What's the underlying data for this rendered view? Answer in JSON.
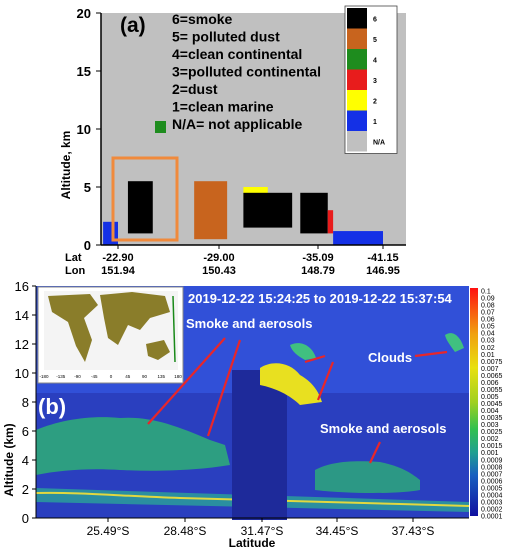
{
  "panel_a": {
    "label": "(a)",
    "ylabel": "Altitude, km",
    "yticks": [
      0,
      5,
      10,
      15,
      20
    ],
    "ylim": [
      0,
      20
    ],
    "row_labels": [
      "Lat",
      "Lon"
    ],
    "xticks": [
      {
        "lat": "-22.90",
        "lon": "151.94"
      },
      {
        "lat": "-29.00",
        "lon": "150.43"
      },
      {
        "lat": "-35.09",
        "lon": "148.79"
      },
      {
        "lat": "-41.15",
        "lon": "146.95"
      }
    ],
    "legend_text": [
      "6=smoke",
      "5=  polluted dust",
      "4=clean continental",
      "3=polluted continental",
      "2=dust",
      "1=clean marine",
      "N/A= not applicable"
    ],
    "colorbar": [
      {
        "label": "6",
        "color": "#000000"
      },
      {
        "label": "5",
        "color": "#c8641e"
      },
      {
        "label": "4",
        "color": "#1e8c1e"
      },
      {
        "label": "3",
        "color": "#e81c1c"
      },
      {
        "label": "2",
        "color": "#ffff00"
      },
      {
        "label": "1",
        "color": "#1430e6"
      },
      {
        "label": "N/A",
        "color": "#c0c0c0"
      }
    ],
    "colors": {
      "background": "#c0c0c0",
      "highlight_box": "#f08a3c"
    }
  },
  "panel_b": {
    "label": "(b)",
    "ylabel": "Altitude (km)",
    "xlabel": "Latitude",
    "yticks": [
      0,
      2,
      4,
      6,
      8,
      10,
      12,
      14,
      16
    ],
    "ylim": [
      0,
      16
    ],
    "xticks": [
      "25.49°S",
      "28.48°S",
      "31.47°S",
      "34.45°S",
      "37.43°S"
    ],
    "time_range": "2019-12-22 15:24:25 to 2019-12-22 15:37:54",
    "annotations": [
      "Smoke and aerosols",
      "Clouds",
      "Smoke and aerosols"
    ],
    "colorbar_labels": [
      "0.1",
      "0.09",
      "0.08",
      "0.07",
      "0.06",
      "0.05",
      "0.04",
      "0.03",
      "0.02",
      "0.01",
      "0.0075",
      "0.007",
      "0.0065",
      "0.006",
      "0.0055",
      "0.005",
      "0.0045",
      "0.004",
      "0.0035",
      "0.003",
      "0.0025",
      "0.002",
      "0.0015",
      "0.001",
      "0.0009",
      "0.0008",
      "0.0007",
      "0.0006",
      "0.0005",
      "0.0004",
      "0.0003",
      "0.0002",
      "0.0001"
    ],
    "map_ticks": [
      "-180",
      "-135",
      "-90",
      "-45",
      "0",
      "45",
      "90",
      "135",
      "180"
    ],
    "colors": {
      "background": "#2a3fbf",
      "upper_background": "#3150d8",
      "annotation": "#e8262a",
      "text": "#ffffff"
    }
  },
  "chart_data": [
    {
      "type": "heatmap",
      "panel": "a",
      "ylabel": "Altitude, km",
      "ylim": [
        0,
        20
      ],
      "x_ticks_lat": [
        -22.9,
        -29.0,
        -35.09,
        -41.15
      ],
      "x_ticks_lon": [
        151.94,
        150.43,
        148.79,
        146.95
      ],
      "categories": [
        "6=smoke",
        "5=  polluted dust",
        "4=clean continental",
        "3=polluted continental",
        "2=dust",
        "1=clean marine",
        "N/A= not applicable"
      ],
      "features": [
        {
          "type": 6,
          "lat_range": [
            -23.5,
            -25.0
          ],
          "alt_km": [
            1.0,
            5.5
          ]
        },
        {
          "type": 5,
          "lat_range": [
            -27.5,
            -29.5
          ],
          "alt_km": [
            0.5,
            5.5
          ]
        },
        {
          "type": 2,
          "lat_range": [
            -30.5,
            -32.0
          ],
          "alt_km": [
            4.0,
            5.0
          ]
        },
        {
          "type": 6,
          "lat_range": [
            -30.5,
            -33.5
          ],
          "alt_km": [
            1.5,
            4.5
          ]
        },
        {
          "type": 6,
          "lat_range": [
            -34.0,
            -36.0
          ],
          "alt_km": [
            1.0,
            4.5
          ]
        },
        {
          "type": 3,
          "lat_range": [
            -36.0,
            -36.5
          ],
          "alt_km": [
            1.0,
            3.0
          ]
        },
        {
          "type": 1,
          "lat_range": [
            -36.5,
            -41.15
          ],
          "alt_km": [
            0.0,
            1.2
          ]
        },
        {
          "type": 1,
          "lat_range": [
            -22.0,
            -22.9
          ],
          "alt_km": [
            0.0,
            2.0
          ]
        }
      ]
    },
    {
      "type": "heatmap",
      "panel": "b",
      "xlabel": "Latitude",
      "ylabel": "Altitude (km)",
      "ylim": [
        0,
        16
      ],
      "x_ticks": [
        "25.49°S",
        "28.48°S",
        "31.47°S",
        "34.45°S",
        "37.43°S"
      ],
      "colorscale": [
        0.0001,
        0.1
      ],
      "annotations": [
        "Smoke and aerosols",
        "Clouds",
        "Smoke and aerosols"
      ]
    }
  ]
}
